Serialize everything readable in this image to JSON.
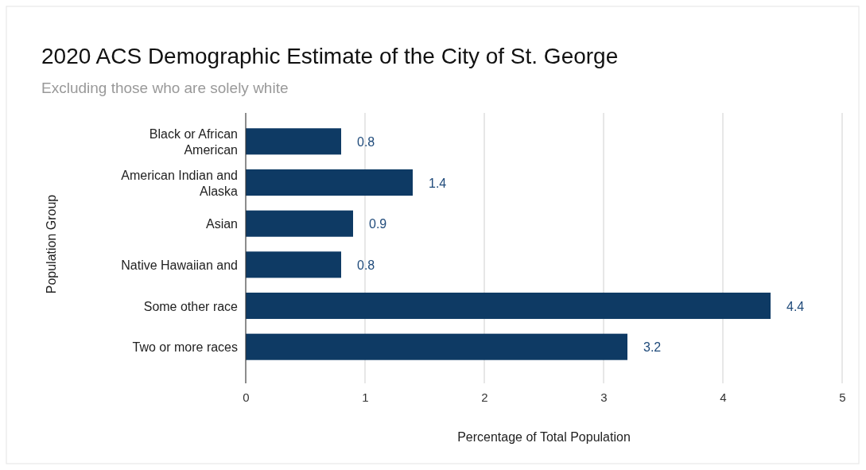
{
  "chart_data": {
    "type": "bar",
    "orientation": "horizontal",
    "title": "2020 ACS Demographic Estimate of the City of St. George",
    "subtitle": "Excluding those who are solely white",
    "xlabel": "Percentage of Total Population",
    "ylabel": "Population Group",
    "categories": [
      "Black or African American",
      "American Indian and Alaska",
      "Asian",
      "Native Hawaiian and",
      "Some other race",
      "Two or more races"
    ],
    "values": [
      0.8,
      1.4,
      0.9,
      0.8,
      4.4,
      3.2
    ],
    "color": "#0e3a64",
    "xlim": [
      0,
      5
    ],
    "xticks": [
      0,
      1,
      2,
      3,
      4,
      5
    ],
    "grid": "x",
    "data_labels": true
  }
}
